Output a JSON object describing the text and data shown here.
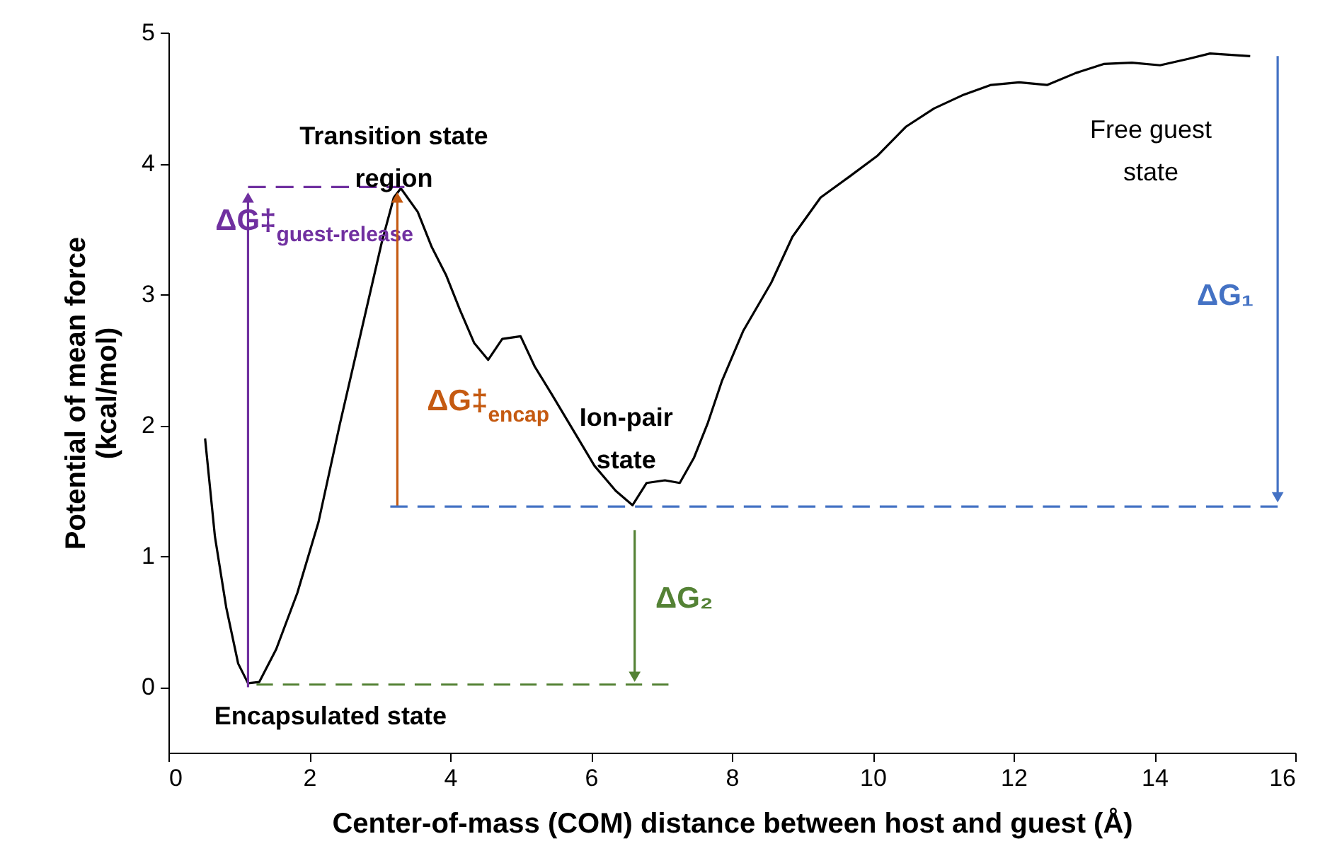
{
  "chart_data": {
    "type": "line",
    "xlabel": "Center-of-mass (COM) distance between host and guest (Å)",
    "ylabel": "Potential of mean force\n(kcal/mol)",
    "xlim": [
      0,
      16
    ],
    "xticks": [
      0,
      2,
      4,
      6,
      8,
      10,
      12,
      14,
      16
    ],
    "ylim": [
      -0.5,
      5
    ],
    "yticks": [
      0,
      1,
      2,
      3,
      4,
      5
    ],
    "series": [
      {
        "color": "#000000",
        "line_style": "solid",
        "x": [
          0.52,
          0.66,
          0.82,
          0.99,
          1.13,
          1.29,
          1.53,
          1.83,
          2.13,
          2.43,
          2.73,
          3.03,
          3.2,
          3.3,
          3.54,
          3.74,
          3.94,
          4.14,
          4.34,
          4.54,
          4.74,
          5.0,
          5.2,
          5.45,
          5.75,
          6.05,
          6.35,
          6.59,
          6.79,
          7.05,
          7.26,
          7.46,
          7.66,
          7.86,
          8.16,
          8.56,
          8.86,
          9.26,
          9.67,
          10.07,
          10.47,
          10.87,
          11.27,
          11.68,
          12.08,
          12.48,
          12.88,
          13.28,
          13.68,
          14.08,
          14.49,
          14.79,
          15.36
        ],
        "values": [
          1.9,
          1.15,
          0.61,
          0.18,
          0.03,
          0.04,
          0.29,
          0.72,
          1.26,
          2.0,
          2.7,
          3.4,
          3.74,
          3.81,
          3.63,
          3.36,
          3.15,
          2.88,
          2.63,
          2.5,
          2.66,
          2.68,
          2.45,
          2.23,
          1.96,
          1.69,
          1.5,
          1.39,
          1.56,
          1.58,
          1.56,
          1.75,
          2.02,
          2.34,
          2.72,
          3.09,
          3.44,
          3.74,
          3.9,
          4.06,
          4.28,
          4.42,
          4.52,
          4.6,
          4.62,
          4.6,
          4.69,
          4.76,
          4.77,
          4.75,
          4.8,
          4.84,
          4.82
        ]
      },
      {
        "color": "#7030a0",
        "line_style": "dashed",
        "x": [
          1.13,
          3.35
        ],
        "values": [
          3.82,
          3.82
        ]
      },
      {
        "name": "ΔG‡$_{guest-release}$",
        "color": "#7030a0",
        "line_style": "solid",
        "marker": "triangle",
        "x": [
          1.13,
          1.13
        ],
        "values": [
          0,
          3.74
        ]
      },
      {
        "name": "ΔG‡$_{encap}$",
        "color": "#c55a11",
        "line_style": "solid",
        "marker": "triangle",
        "x": [
          3.25,
          3.25
        ],
        "values": [
          1.38,
          3.74
        ]
      },
      {
        "color": "#4472c4",
        "line_style": "dashed",
        "x": [
          3.15,
          15.75
        ],
        "values": [
          1.38,
          1.38
        ]
      },
      {
        "name": "ΔG₁",
        "color": "#4472c4",
        "line_style": "solid",
        "marker": "triangle",
        "x": [
          15.75,
          15.75
        ],
        "values": [
          4.82,
          1.45
        ]
      },
      {
        "name": "ΔG₂",
        "color": "#548235",
        "line_style": "solid",
        "marker": "triangle",
        "x": [
          6.62,
          6.62
        ],
        "values": [
          1.2,
          0.08
        ]
      },
      {
        "color": "#548235",
        "line_style": "dashed",
        "x": [
          1.25,
          7.1
        ],
        "values": [
          0.02,
          0.02
        ]
      }
    ],
    "annotations": [
      "Transition state\nregion",
      "Ion-pair\nstate",
      "Encapsulated state",
      "Free guest\nstate"
    ]
  }
}
